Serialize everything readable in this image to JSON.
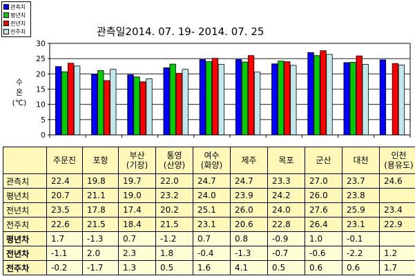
{
  "chart_data": {
    "type": "bar",
    "title": "관측일2014. 07. 19-  2014. 07. 25",
    "xlabel": "",
    "ylabel": "수온 (℃)",
    "ylabel_lines": [
      "수",
      "온",
      "(℃)"
    ],
    "ylim": [
      0,
      30
    ],
    "yticks": [
      0,
      5,
      10,
      15,
      20,
      25,
      30
    ],
    "grid": true,
    "legend_position": "top-left",
    "categories": [
      "주문진",
      "포항",
      "부산 (기장)",
      "통영 (산양)",
      "여수 (화양)",
      "제주",
      "목포",
      "군산",
      "대천",
      "인천 (용유도)"
    ],
    "category_lines": [
      [
        "주문진"
      ],
      [
        "포항"
      ],
      [
        "부산",
        "(기장)"
      ],
      [
        "통영",
        "(산양)"
      ],
      [
        "여수",
        "(화양)"
      ],
      [
        "제주"
      ],
      [
        "목포"
      ],
      [
        "군산"
      ],
      [
        "대천"
      ],
      [
        "인천",
        "(용유도)"
      ]
    ],
    "series": [
      {
        "name": "관측치",
        "color": "#0000ff",
        "values": [
          22.4,
          19.8,
          19.7,
          22.0,
          24.7,
          24.7,
          23.3,
          27.0,
          23.7,
          24.6
        ]
      },
      {
        "name": "평년치",
        "color": "#00cc00",
        "values": [
          20.7,
          21.1,
          19.0,
          23.2,
          24.0,
          23.9,
          24.2,
          26.0,
          23.8,
          null
        ]
      },
      {
        "name": "전년치",
        "color": "#ff0000",
        "values": [
          23.5,
          17.8,
          17.4,
          20.2,
          25.1,
          26.0,
          24.0,
          27.6,
          25.9,
          23.4
        ]
      },
      {
        "name": "전주치",
        "color": "#bfe8ec",
        "values": [
          22.6,
          21.5,
          18.4,
          21.5,
          23.1,
          20.6,
          22.8,
          26.4,
          23.1,
          22.9
        ]
      }
    ],
    "table_rows": [
      {
        "label": "관측치",
        "values": [
          "22.4",
          "19.8",
          "19.7",
          "22.0",
          "24.7",
          "24.7",
          "23.3",
          "27.0",
          "23.7",
          "24.6"
        ]
      },
      {
        "label": "평년치",
        "values": [
          "20.7",
          "21.1",
          "19.0",
          "23.2",
          "24.0",
          "23.9",
          "24.2",
          "26.0",
          "23.8",
          ""
        ]
      },
      {
        "label": "전년치",
        "values": [
          "23.5",
          "17.8",
          "17.4",
          "20.2",
          "25.1",
          "26.0",
          "24.0",
          "27.6",
          "25.9",
          "23.4"
        ]
      },
      {
        "label": "전주치",
        "values": [
          "22.6",
          "21.5",
          "18.4",
          "21.5",
          "23.1",
          "20.6",
          "22.8",
          "26.4",
          "23.1",
          "22.9"
        ]
      },
      {
        "label": "평년차",
        "diff": true,
        "values": [
          "1.7",
          "-1.3",
          "0.7",
          "-1.2",
          "0.7",
          "0.8",
          "-0.9",
          "1.0",
          "-0.1",
          ""
        ]
      },
      {
        "label": "전년차",
        "diff": true,
        "values": [
          "-1.1",
          "2.0",
          "2.3",
          "1.8",
          "-0.4",
          "-1.3",
          "-0.7",
          "-0.6",
          "-2.2",
          "1.2"
        ]
      },
      {
        "label": "전주차",
        "diff": true,
        "values": [
          "-0.2",
          "-1.7",
          "1.3",
          "0.5",
          "1.6",
          "4.1",
          "0.5",
          "0.6",
          "0.6",
          "1.7"
        ]
      }
    ]
  }
}
